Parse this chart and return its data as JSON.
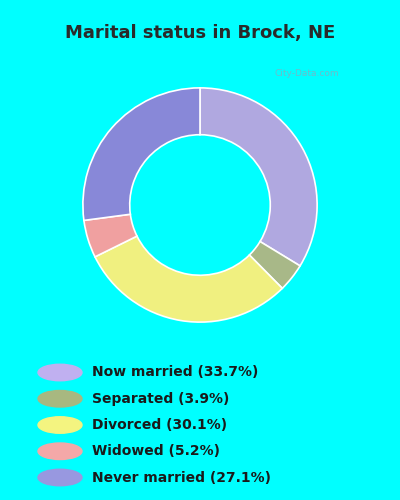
{
  "title": "Marital status in Brock, NE",
  "title_color": "#2a2a2a",
  "background_color": "#00ffff",
  "chart_bg_color": "#d8edd8",
  "slices": [
    {
      "label": "Now married (33.7%)",
      "value": 33.7,
      "color": "#b0a8e0"
    },
    {
      "label": "Separated (3.9%)",
      "value": 3.9,
      "color": "#a8b888"
    },
    {
      "label": "Divorced (30.1%)",
      "value": 30.1,
      "color": "#f0f080"
    },
    {
      "label": "Widowed (5.2%)",
      "value": 5.2,
      "color": "#f0a0a0"
    },
    {
      "label": "Never married (27.1%)",
      "value": 27.1,
      "color": "#8888d8"
    }
  ],
  "legend_colors": [
    "#c0b0f0",
    "#a8b880",
    "#f4f480",
    "#f4a8a8",
    "#9898e0"
  ],
  "watermark": "City-Data.com",
  "title_fontsize": 13,
  "legend_fontsize": 10
}
